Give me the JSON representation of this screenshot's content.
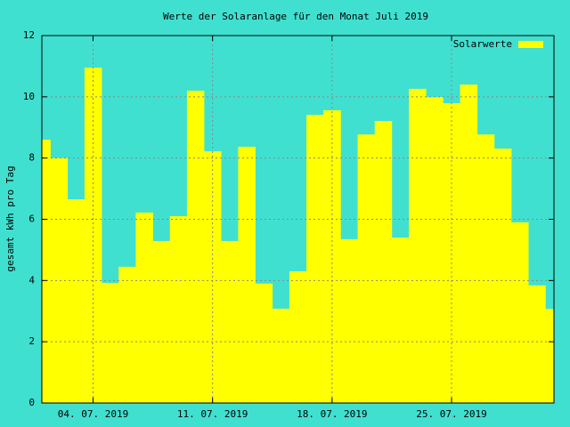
{
  "chart_data": {
    "type": "bar",
    "title": "Werte der Solaranlage für den Monat Juli 2019",
    "y_label": "gesamt kWh pro Tag",
    "x": [
      1,
      2,
      3,
      4,
      5,
      6,
      7,
      8,
      9,
      10,
      11,
      12,
      13,
      14,
      15,
      16,
      17,
      18,
      19,
      20,
      21,
      22,
      23,
      24,
      25,
      26,
      27,
      28,
      29,
      30,
      31
    ],
    "series": [
      {
        "name": "Solarwerte",
        "color": "#ffff00",
        "values": [
          8.6,
          8.0,
          6.65,
          10.95,
          3.92,
          4.45,
          6.22,
          5.29,
          6.1,
          10.2,
          8.22,
          5.29,
          8.37,
          3.9,
          3.08,
          4.3,
          9.41,
          9.56,
          5.35,
          8.77,
          9.21,
          5.4,
          10.26,
          9.99,
          9.79,
          10.4,
          8.77,
          8.31,
          5.9,
          3.84,
          3.07
        ]
      }
    ],
    "xlim": [
      1,
      31
    ],
    "xticks": [
      {
        "value": 4,
        "label": "04. 07. 2019"
      },
      {
        "value": 11,
        "label": "11. 07. 2019"
      },
      {
        "value": 18,
        "label": "18. 07. 2019"
      },
      {
        "value": 25,
        "label": "25. 07. 2019"
      }
    ],
    "ylim": [
      0,
      12
    ],
    "yticks": [
      0,
      2,
      4,
      6,
      8,
      10,
      12
    ],
    "grid": true,
    "legend": "top-right",
    "background": "#40e0d0"
  }
}
